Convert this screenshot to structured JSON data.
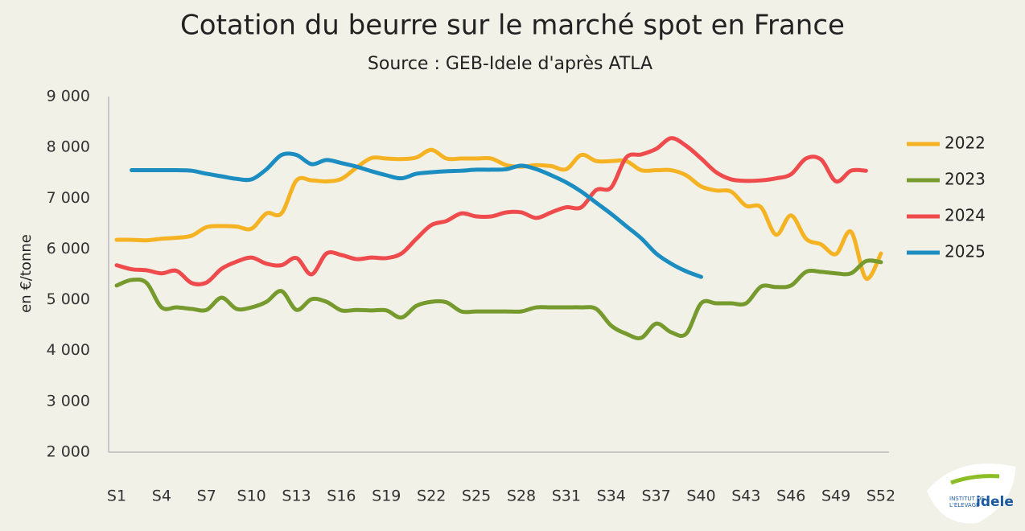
{
  "chart_data": {
    "type": "line",
    "title": "Cotation du beurre sur le marché spot en France",
    "subtitle": "Source : GEB-Idele d'après ATLA",
    "y_label": "en €/tonne",
    "categories": [
      "S1",
      null,
      null,
      "S4",
      null,
      null,
      "S7",
      null,
      null,
      "S10",
      null,
      null,
      "S13",
      null,
      null,
      "S16",
      null,
      null,
      "S19",
      null,
      null,
      "S22",
      null,
      null,
      "S25",
      null,
      null,
      "S28",
      null,
      null,
      "S31",
      null,
      null,
      "S34",
      null,
      null,
      "S37",
      null,
      null,
      "S40",
      null,
      null,
      "S43",
      null,
      null,
      "S46",
      null,
      null,
      "S49",
      null,
      null,
      "S52"
    ],
    "ylim": [
      2000,
      9000
    ],
    "yticks": [
      {
        "value": 2000,
        "label": "2 000"
      },
      {
        "value": 3000,
        "label": "3 000"
      },
      {
        "value": 4000,
        "label": "4 000"
      },
      {
        "value": 5000,
        "label": "5 000"
      },
      {
        "value": 6000,
        "label": "6 000"
      },
      {
        "value": 7000,
        "label": "7 000"
      },
      {
        "value": 8000,
        "label": "8 000"
      },
      {
        "value": 9000,
        "label": "9 000"
      }
    ],
    "grid": false,
    "legend": "right",
    "series": [
      {
        "name": "2022",
        "color": "#f5b324",
        "values": [
          6180,
          6180,
          6170,
          6200,
          6220,
          6260,
          6430,
          6450,
          6440,
          6400,
          6700,
          6700,
          7350,
          7350,
          7330,
          7380,
          7600,
          7790,
          7780,
          7770,
          7800,
          7950,
          7780,
          7780,
          7780,
          7780,
          7650,
          7620,
          7650,
          7630,
          7570,
          7850,
          7730,
          7730,
          7730,
          7550,
          7550,
          7550,
          7450,
          7230,
          7150,
          7130,
          6850,
          6820,
          6280,
          6660,
          6200,
          6090,
          5900,
          6340,
          5420,
          5910
        ]
      },
      {
        "name": "2023",
        "color": "#779a2e",
        "values": [
          5280,
          5390,
          5330,
          4850,
          4850,
          4820,
          4800,
          5040,
          4820,
          4850,
          4960,
          5170,
          4800,
          5010,
          4960,
          4790,
          4800,
          4790,
          4790,
          4650,
          4880,
          4960,
          4950,
          4770,
          4770,
          4770,
          4770,
          4770,
          4850,
          4850,
          4850,
          4850,
          4820,
          4490,
          4330,
          4250,
          4530,
          4360,
          4330,
          4930,
          4930,
          4930,
          4930,
          5260,
          5250,
          5280,
          5550,
          5550,
          5520,
          5520,
          5760,
          5740
        ]
      },
      {
        "name": "2024",
        "color": "#ef4b4d",
        "values": [
          5680,
          5600,
          5580,
          5520,
          5570,
          5330,
          5340,
          5610,
          5750,
          5830,
          5710,
          5680,
          5820,
          5500,
          5910,
          5880,
          5800,
          5830,
          5820,
          5910,
          6200,
          6470,
          6550,
          6700,
          6640,
          6640,
          6720,
          6720,
          6610,
          6720,
          6820,
          6820,
          7160,
          7210,
          7800,
          7860,
          7970,
          8180,
          8030,
          7780,
          7510,
          7370,
          7340,
          7350,
          7390,
          7470,
          7780,
          7760,
          7330,
          7540,
          7540,
          null
        ]
      },
      {
        "name": "2025",
        "color": "#1b8dc1",
        "values": [
          null,
          7550,
          7550,
          7550,
          7550,
          7540,
          7480,
          7430,
          7380,
          7370,
          7570,
          7850,
          7850,
          7670,
          7750,
          7690,
          7620,
          7530,
          7450,
          7390,
          7480,
          7510,
          7530,
          7540,
          7560,
          7560,
          7570,
          7640,
          7570,
          7450,
          7310,
          7130,
          6910,
          6690,
          6450,
          6210,
          5910,
          5710,
          5560,
          5450,
          null,
          null,
          null,
          null,
          null,
          null,
          null,
          null,
          null,
          null,
          null,
          null
        ]
      }
    ]
  },
  "logo": {
    "line1": "INSTITUT DE",
    "line2": "L'ELEVAGE",
    "brand": "idele"
  }
}
